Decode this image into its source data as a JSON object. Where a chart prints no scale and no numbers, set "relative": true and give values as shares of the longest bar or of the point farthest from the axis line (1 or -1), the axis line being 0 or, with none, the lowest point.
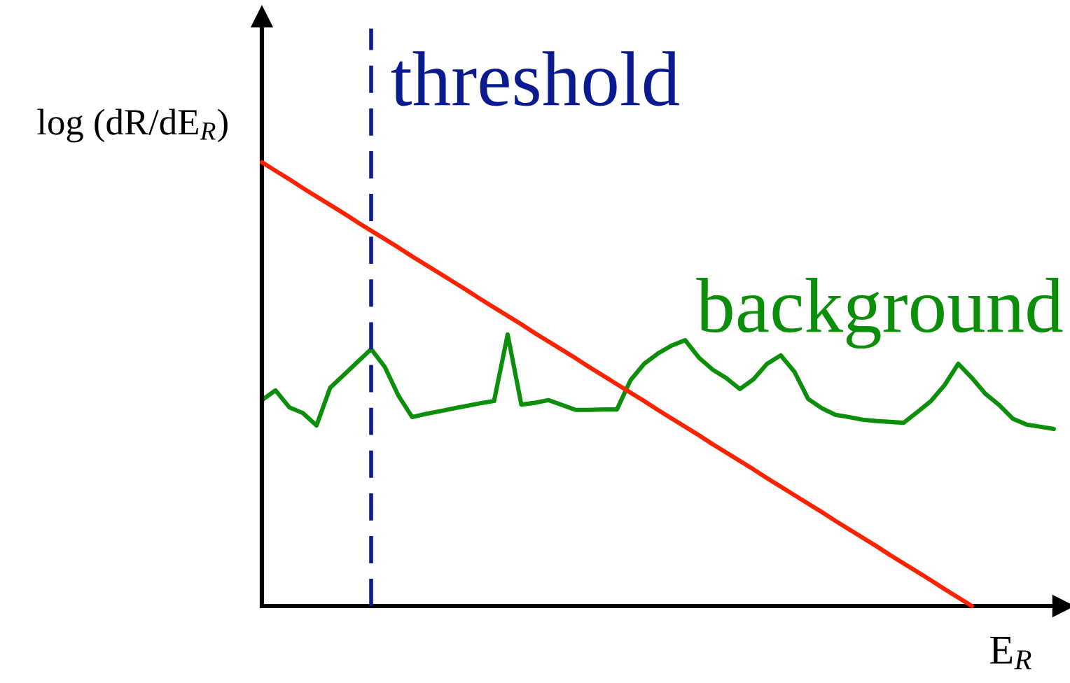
{
  "chart_data": {
    "type": "line",
    "relative": true,
    "xlabel": "E$_{R}$",
    "ylabel": "log (dR/dE$_{R}$)",
    "categories": [
      null,
      null,
      null,
      null,
      null,
      null,
      null,
      null,
      null,
      null,
      null,
      null,
      null,
      null,
      null,
      null,
      null,
      null,
      null,
      null,
      null,
      null,
      null,
      null,
      null,
      null,
      null,
      null,
      null,
      null,
      null,
      null,
      null,
      null,
      null,
      null,
      null,
      null,
      null,
      null,
      null,
      null,
      null,
      null,
      null,
      null,
      null,
      null,
      null,
      null,
      null,
      null,
      null,
      null,
      null,
      null,
      null,
      null,
      null
    ],
    "series": [
      {
        "name": "background",
        "color": "#0b8f0b",
        "values": [
          0.464,
          0.486,
          0.448,
          0.435,
          0.407,
          0.492,
          0.521,
          0.55,
          0.579,
          0.539,
          0.474,
          0.426,
          0.433,
          0.439,
          0.445,
          0.451,
          0.457,
          0.462,
          0.612,
          0.454,
          0.458,
          0.464,
          0.453,
          0.442,
          0.442,
          0.443,
          0.443,
          0.509,
          0.546,
          0.569,
          0.587,
          0.599,
          0.56,
          0.533,
          0.514,
          0.489,
          0.511,
          0.546,
          0.565,
          0.528,
          0.467,
          0.446,
          0.431,
          0.426,
          0.42,
          0.417,
          0.415,
          0.413,
          0.437,
          0.462,
          0.498,
          0.546,
          0.514,
          0.478,
          0.453,
          0.422,
          0.409,
          0.404,
          0.399
        ]
      },
      {
        "color": "#ff2200",
        "values": [
          1,
          0.981,
          0.962,
          0.942,
          0.923,
          0.904,
          0.885,
          0.865,
          0.846,
          0.827,
          0.808,
          0.788,
          0.769,
          0.75,
          0.731,
          0.712,
          0.692,
          0.673,
          0.654,
          0.635,
          0.615,
          0.596,
          0.577,
          0.558,
          0.538,
          0.519,
          0.5,
          0.481,
          0.462,
          0.442,
          0.423,
          0.404,
          0.385,
          0.365,
          0.346,
          0.327,
          0.308,
          0.288,
          0.269,
          0.25,
          0.231,
          0.212,
          0.192,
          0.173,
          0.154,
          0.135,
          0.115,
          0.096,
          0.077,
          0.058,
          0.038,
          0.019,
          0,
          null,
          null,
          null,
          null,
          null,
          null
        ]
      }
    ],
    "ref_lines": [
      {
        "axis": "x",
        "label": "threshold",
        "color": "#0a1a8f",
        "line_style": "dashed"
      }
    ]
  }
}
